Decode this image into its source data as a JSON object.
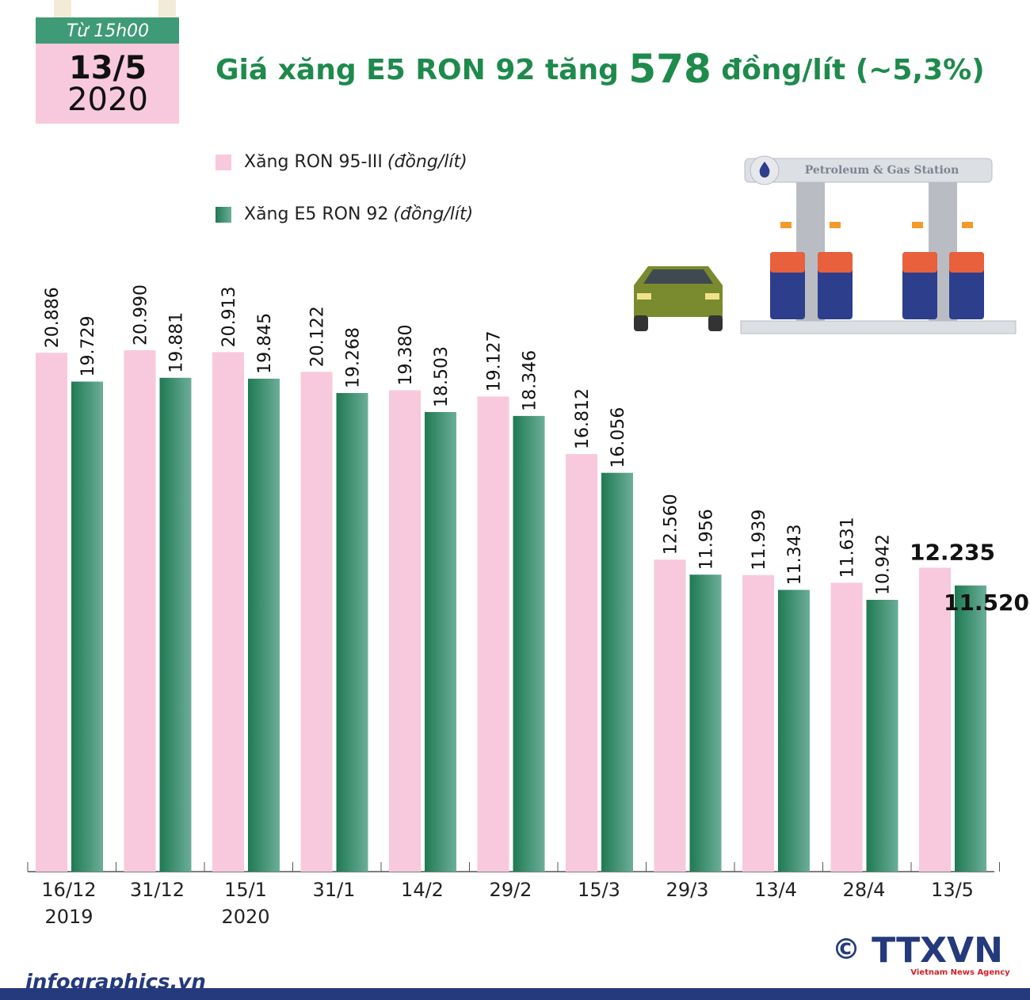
{
  "header": {
    "time": "Từ 15h00",
    "date": "13/5",
    "year": "2020"
  },
  "illustration": {
    "sign": "Petroleum & Gas Station"
  },
  "footer": {
    "site": "infographics.vn",
    "copyright": "©",
    "agency": "TTXVN",
    "agency_en": "Vietnam News Agency"
  },
  "chart_data": {
    "type": "bar",
    "title": {
      "prefix": "Giá xăng E5 RON 92 tăng ",
      "highlight": "578",
      "suffix": " đồng/lít (~5,3%)"
    },
    "legend_unit": "(đồng/lít)",
    "categories": [
      "16/12",
      "31/12",
      "15/1",
      "31/1",
      "14/2",
      "29/2",
      "15/3",
      "29/3",
      "13/4",
      "28/4",
      "13/5"
    ],
    "category_years": [
      "2019",
      null,
      "2020",
      null,
      null,
      null,
      null,
      null,
      null,
      null,
      null
    ],
    "ylim": [
      0,
      21000
    ],
    "series": [
      {
        "name": "Xăng RON 95-III",
        "color": "#f8c9dc",
        "values": [
          20886,
          20990,
          20913,
          20122,
          19380,
          19127,
          16812,
          12560,
          11939,
          11631,
          12235
        ],
        "value_labels": [
          "20.886",
          "20.990",
          "20.913",
          "20.122",
          "19.380",
          "19.127",
          "16.812",
          "12.560",
          "11.939",
          "11.631",
          "12.235"
        ]
      },
      {
        "name": "Xăng E5 RON 92",
        "color": "#2f8a5f",
        "values": [
          19729,
          19881,
          19845,
          19268,
          18503,
          18346,
          16056,
          11956,
          11343,
          10942,
          11520
        ],
        "value_labels": [
          "19.729",
          "19.881",
          "19.845",
          "19.268",
          "18.503",
          "18.346",
          "16.056",
          "11.956",
          "11.343",
          "10.942",
          "11.520"
        ]
      }
    ]
  }
}
